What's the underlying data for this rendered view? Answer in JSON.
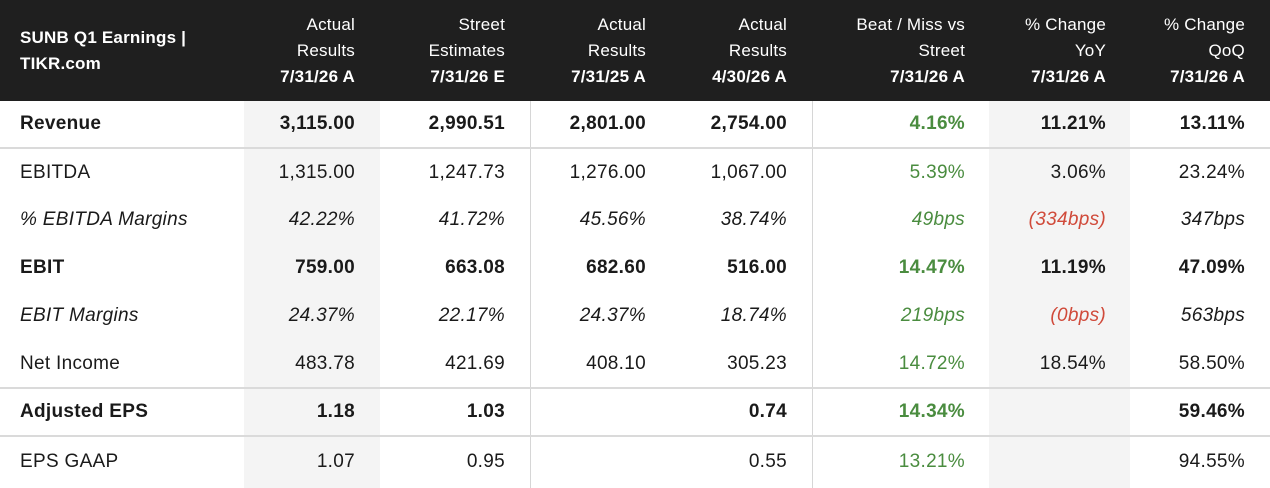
{
  "header": {
    "title_line1": "SUNB Q1 Earnings |",
    "title_line2": "TIKR.com",
    "columns": [
      {
        "l1": "Actual",
        "l2": "Results",
        "date": "7/31/26 A"
      },
      {
        "l1": "Street",
        "l2": "Estimates",
        "date": "7/31/26 E"
      },
      {
        "l1": "Actual",
        "l2": "Results",
        "date": "7/31/25 A"
      },
      {
        "l1": "Actual",
        "l2": "Results",
        "date": "4/30/26 A"
      },
      {
        "l1": "Beat / Miss vs",
        "l2": "Street",
        "date": "7/31/26 A"
      },
      {
        "l1": "% Change",
        "l2": "YoY",
        "date": "7/31/26 A"
      },
      {
        "l1": "% Change",
        "l2": "QoQ",
        "date": "7/31/26 A"
      }
    ]
  },
  "rows": [
    {
      "label": "Revenue",
      "v": [
        "3,115.00",
        "2,990.51",
        "2,801.00",
        "2,754.00",
        "4.16%",
        "11.21%",
        "13.11%"
      ]
    },
    {
      "label": "EBITDA",
      "v": [
        "1,315.00",
        "1,247.73",
        "1,276.00",
        "1,067.00",
        "5.39%",
        "3.06%",
        "23.24%"
      ]
    },
    {
      "label": "% EBITDA Margins",
      "v": [
        "42.22%",
        "41.72%",
        "45.56%",
        "38.74%",
        "49bps",
        "(334bps)",
        "347bps"
      ]
    },
    {
      "label": "EBIT",
      "v": [
        "759.00",
        "663.08",
        "682.60",
        "516.00",
        "14.47%",
        "11.19%",
        "47.09%"
      ]
    },
    {
      "label": "EBIT Margins",
      "v": [
        "24.37%",
        "22.17%",
        "24.37%",
        "18.74%",
        "219bps",
        "(0bps)",
        "563bps"
      ]
    },
    {
      "label": "Net Income",
      "v": [
        "483.78",
        "421.69",
        "408.10",
        "305.23",
        "14.72%",
        "18.54%",
        "58.50%"
      ]
    },
    {
      "label": "Adjusted EPS",
      "v": [
        "1.18",
        "1.03",
        "",
        "0.74",
        "14.34%",
        "",
        "59.46%"
      ]
    },
    {
      "label": "EPS GAAP",
      "v": [
        "1.07",
        "0.95",
        "",
        "0.55",
        "13.21%",
        "",
        "94.55%"
      ]
    }
  ],
  "colors": {
    "header_bg": "#1f1f1f",
    "positive": "#4a8c3f",
    "negative": "#d04a3a",
    "shade": "#f4f4f4"
  }
}
